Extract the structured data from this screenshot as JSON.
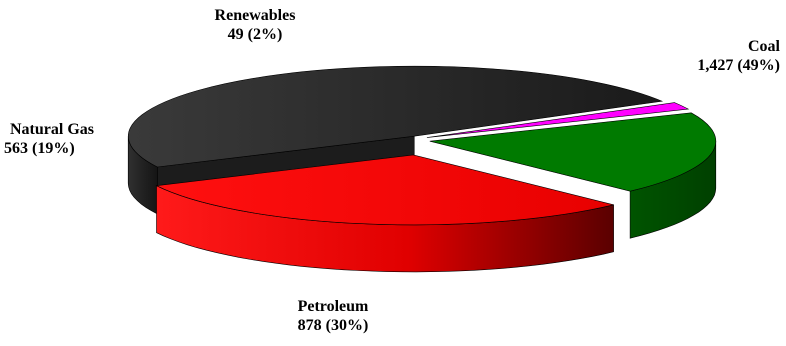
{
  "chart_data": {
    "type": "pie",
    "title": "",
    "three_d": true,
    "exploded": true,
    "segments": [
      {
        "name": "Coal",
        "value": 1427,
        "percent": "49%",
        "value_text": "1,427 (49%)",
        "color": "#2a2a2a"
      },
      {
        "name": "Petroleum",
        "value": 878,
        "percent": "30%",
        "value_text": "878 (30%)",
        "color": "#ff0000"
      },
      {
        "name": "Natural Gas",
        "value": 563,
        "percent": "19%",
        "value_text": "563 (19%)",
        "color": "#007a00"
      },
      {
        "name": "Renewables",
        "value": 49,
        "percent": "2%",
        "value_text": "49 (2%)",
        "color": "#ff00ff"
      }
    ]
  }
}
